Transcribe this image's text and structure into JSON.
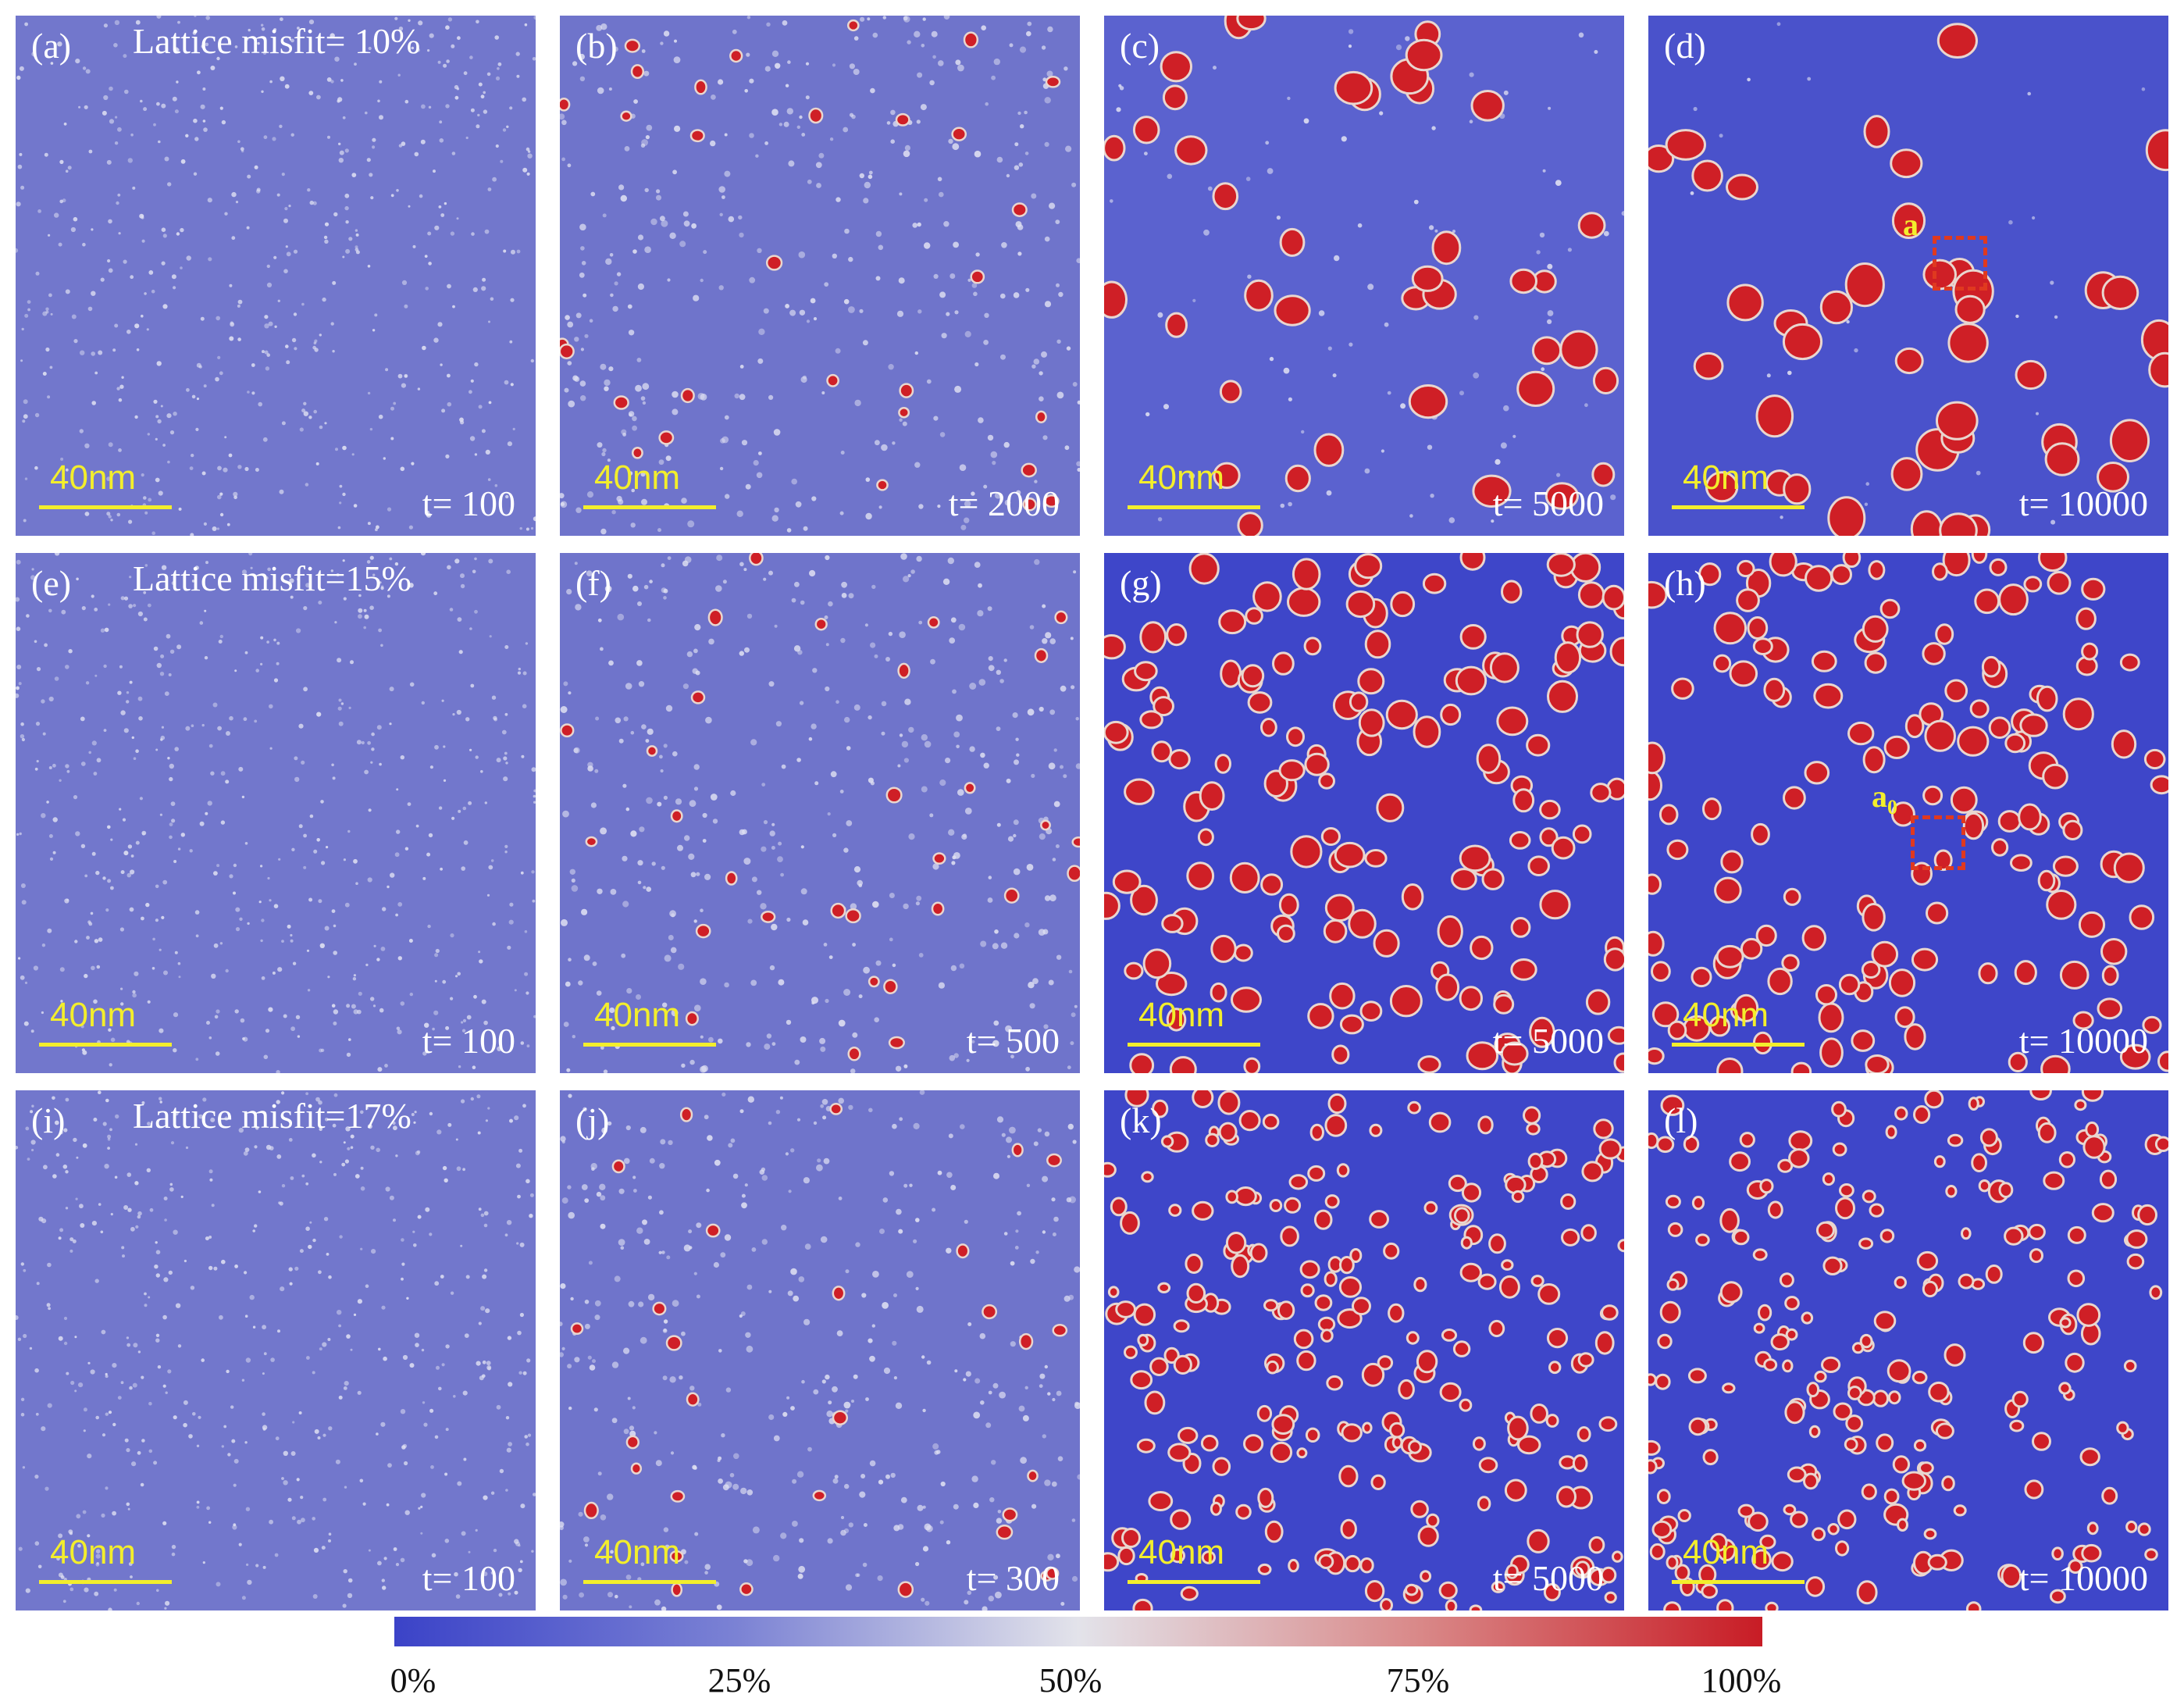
{
  "figure": {
    "panels": [
      {
        "id": "a",
        "label": "(a)",
        "misfit": "Lattice misfit= 10%",
        "time": "t= 100",
        "scale": "40nm",
        "stage": 0
      },
      {
        "id": "b",
        "label": "(b)",
        "time": "t= 2000",
        "scale": "40nm",
        "stage": 1
      },
      {
        "id": "c",
        "label": "(c)",
        "time": "t= 5000",
        "scale": "40nm",
        "stage": 2
      },
      {
        "id": "d",
        "label": "(d)",
        "time": "t= 10000",
        "scale": "40nm",
        "stage": 3,
        "marker": "a"
      },
      {
        "id": "e",
        "label": "(e)",
        "misfit": "Lattice misfit=15%",
        "time": "t= 100",
        "scale": "40nm",
        "stage": 0
      },
      {
        "id": "f",
        "label": "(f)",
        "time": "t= 500",
        "scale": "40nm",
        "stage": 1
      },
      {
        "id": "g",
        "label": "(g)",
        "time": "t= 5000",
        "scale": "40nm",
        "stage": 4
      },
      {
        "id": "h",
        "label": "(h)",
        "time": "t= 10000",
        "scale": "40nm",
        "stage": 4,
        "marker": "a0"
      },
      {
        "id": "i",
        "label": "(i)",
        "misfit": "Lattice misfit=17%",
        "time": "t= 100",
        "scale": "40nm",
        "stage": 0
      },
      {
        "id": "j",
        "label": "(j)",
        "time": "t= 300",
        "scale": "40nm",
        "stage": 1
      },
      {
        "id": "k",
        "label": "(k)",
        "time": "t= 5000",
        "scale": "40nm",
        "stage": 5
      },
      {
        "id": "l",
        "label": "(l)",
        "time": "t= 10000",
        "scale": "40nm",
        "stage": 5
      }
    ],
    "markers": {
      "a": {
        "main": "a",
        "sub": ""
      },
      "a0": {
        "main": "a",
        "sub": "0"
      }
    },
    "colorbar": {
      "ticks": [
        "0%",
        "25%",
        "50%",
        "75%",
        "100%"
      ],
      "tick_values": [
        0,
        25,
        50,
        75,
        100
      ],
      "colors": [
        "#3b43c8",
        "#7b82d4",
        "#e3e3ea",
        "#d98888",
        "#c81c25"
      ]
    },
    "background_colors": {
      "stage_early": "#7277cc",
      "stage_late": "#3e46c9",
      "precipitate": "#cf1f26",
      "rim": "#e9d6cf"
    }
  }
}
